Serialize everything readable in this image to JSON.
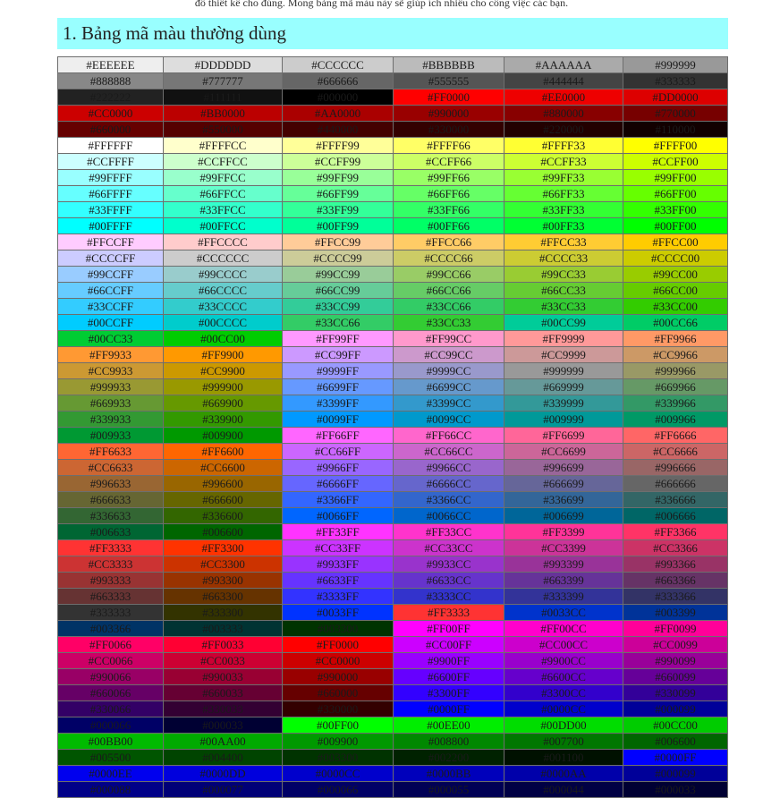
{
  "intro_text": "đồ thiết kế cho đúng. Mong bảng mã màu này sẽ giúp ích nhiều cho công việc các bạn.",
  "section_heading": "1. Bảng mã màu thường dùng",
  "color_table": [
    [
      "#EEEEEE",
      "#DDDDDD",
      "#CCCCCC",
      "#BBBBBB",
      "#AAAAAA",
      "#999999"
    ],
    [
      "#888888",
      "#777777",
      "#666666",
      "#555555",
      "#444444",
      "#333333"
    ],
    [
      "#222222",
      "#111111",
      "#000000",
      "#FF0000",
      "#EE0000",
      "#DD0000"
    ],
    [
      "#CC0000",
      "#BB0000",
      "#AA0000",
      "#990000",
      "#880000",
      "#770000"
    ],
    [
      "#660000",
      "#550000",
      "#440000",
      "#330000",
      "#220000",
      "#110000"
    ],
    [
      "#FFFFFF",
      "#FFFFCC",
      "#FFFF99",
      "#FFFF66",
      "#FFFF33",
      "#FFFF00"
    ],
    [
      "#CCFFFF",
      "#CCFFCC",
      "#CCFF99",
      "#CCFF66",
      "#CCFF33",
      "#CCFF00"
    ],
    [
      "#99FFFF",
      "#99FFCC",
      "#99FF99",
      "#99FF66",
      "#99FF33",
      "#99FF00"
    ],
    [
      "#66FFFF",
      "#66FFCC",
      "#66FF99",
      "#66FF66",
      "#66FF33",
      "#66FF00"
    ],
    [
      "#33FFFF",
      "#33FFCC",
      "#33FF99",
      "#33FF66",
      "#33FF33",
      "#33FF00"
    ],
    [
      "#00FFFF",
      "#00FFCC",
      "#00FF99",
      "#00FF66",
      "#00FF33",
      "#00FF00"
    ],
    [
      "#FFCCFF",
      "#FFCCCC",
      "#FFCC99",
      "#FFCC66",
      "#FFCC33",
      "#FFCC00"
    ],
    [
      "#CCCCFF",
      "#CCCCCC",
      "#CCCC99",
      "#CCCC66",
      "#CCCC33",
      "#CCCC00"
    ],
    [
      "#99CCFF",
      "#99CCCC",
      "#99CC99",
      "#99CC66",
      "#99CC33",
      "#99CC00"
    ],
    [
      "#66CCFF",
      "#66CCCC",
      "#66CC99",
      "#66CC66",
      "#66CC33",
      "#66CC00"
    ],
    [
      "#33CCFF",
      "#33CCCC",
      "#33CC99",
      "#33CC66",
      "#33CC33",
      "#33CC00"
    ],
    [
      "#00CCFF",
      "#00CCCC",
      "#33CC66",
      "#33CC33",
      "#00CC99",
      "#00CC66"
    ],
    [
      "#00CC33",
      "#00CC00",
      "#FF99FF",
      "#FF99CC",
      "#FF9999",
      "#FF9966"
    ],
    [
      "#FF9933",
      "#FF9900",
      "#CC99FF",
      "#CC99CC",
      "#CC9999",
      "#CC9966"
    ],
    [
      "#CC9933",
      "#CC9900",
      "#9999FF",
      "#9999CC",
      "#999999",
      "#999966"
    ],
    [
      "#999933",
      "#999900",
      "#6699FF",
      "#6699CC",
      "#669999",
      "#669966"
    ],
    [
      "#669933",
      "#669900",
      "#3399FF",
      "#3399CC",
      "#339999",
      "#339966"
    ],
    [
      "#339933",
      "#339900",
      "#0099FF",
      "#0099CC",
      "#009999",
      "#009966"
    ],
    [
      "#009933",
      "#009900",
      "#FF66FF",
      "#FF66CC",
      "#FF6699",
      "#FF6666"
    ],
    [
      "#FF6633",
      "#FF6600",
      "#CC66FF",
      "#CC66CC",
      "#CC6699",
      "#CC6666"
    ],
    [
      "#CC6633",
      "#CC6600",
      "#9966FF",
      "#9966CC",
      "#996699",
      "#996666"
    ],
    [
      "#996633",
      "#996600",
      "#6666FF",
      "#6666CC",
      "#666699",
      "#666666"
    ],
    [
      "#666633",
      "#666600",
      "#3366FF",
      "#3366CC",
      "#336699",
      "#336666"
    ],
    [
      "#336633",
      "#336600",
      "#0066FF",
      "#0066CC",
      "#006699",
      "#006666"
    ],
    [
      "#006633",
      "#006600",
      "#FF33FF",
      "#FF33CC",
      "#FF3399",
      "#FF3366"
    ],
    [
      "#FF3333",
      "#FF3300",
      "#CC33FF",
      "#CC33CC",
      "#CC3399",
      "#CC3366"
    ],
    [
      "#CC3333",
      "#CC3300",
      "#9933FF",
      "#9933CC",
      "#993399",
      "#993366"
    ],
    [
      "#993333",
      "#993300",
      "#6633FF",
      "#6633CC",
      "#663399",
      "#663366"
    ],
    [
      "#663333",
      "#663300",
      "#3333FF",
      "#3333CC",
      "#333399",
      "#333366"
    ],
    [
      "#333333",
      "#333300",
      "#0033FF",
      "#FF3333",
      "#0033CC",
      "#003399"
    ],
    [
      "#003366",
      "#003333",
      "#003300",
      "#FF00FF",
      "#FF00CC",
      "#FF0099"
    ],
    [
      "#FF0066",
      "#FF0033",
      "#FF0000",
      "#CC00FF",
      "#CC00CC",
      "#CC0099"
    ],
    [
      "#CC0066",
      "#CC0033",
      "#CC0000",
      "#9900FF",
      "#9900CC",
      "#990099"
    ],
    [
      "#990066",
      "#990033",
      "#990000",
      "#6600FF",
      "#6600CC",
      "#660099"
    ],
    [
      "#660066",
      "#660033",
      "#660000",
      "#3300FF",
      "#3300CC",
      "#330099"
    ],
    [
      "#330066",
      "#330033",
      "#330000",
      "#0000FF",
      "#0000CC",
      "#000099"
    ],
    [
      "#000066",
      "#000033",
      "#00FF00",
      "#00EE00",
      "#00DD00",
      "#00CC00"
    ],
    [
      "#00BB00",
      "#00AA00",
      "#009900",
      "#008800",
      "#007700",
      "#006600"
    ],
    [
      "#005500",
      "#004400",
      "#003300",
      "#002200",
      "#001100",
      "#0000FF"
    ],
    [
      "#0000EE",
      "#0000DD",
      "#0000CC",
      "#0000BB",
      "#0000AA",
      "#000099"
    ],
    [
      "#000088",
      "#000077",
      "#000066",
      "#000055",
      "#000044",
      "#000033"
    ]
  ]
}
